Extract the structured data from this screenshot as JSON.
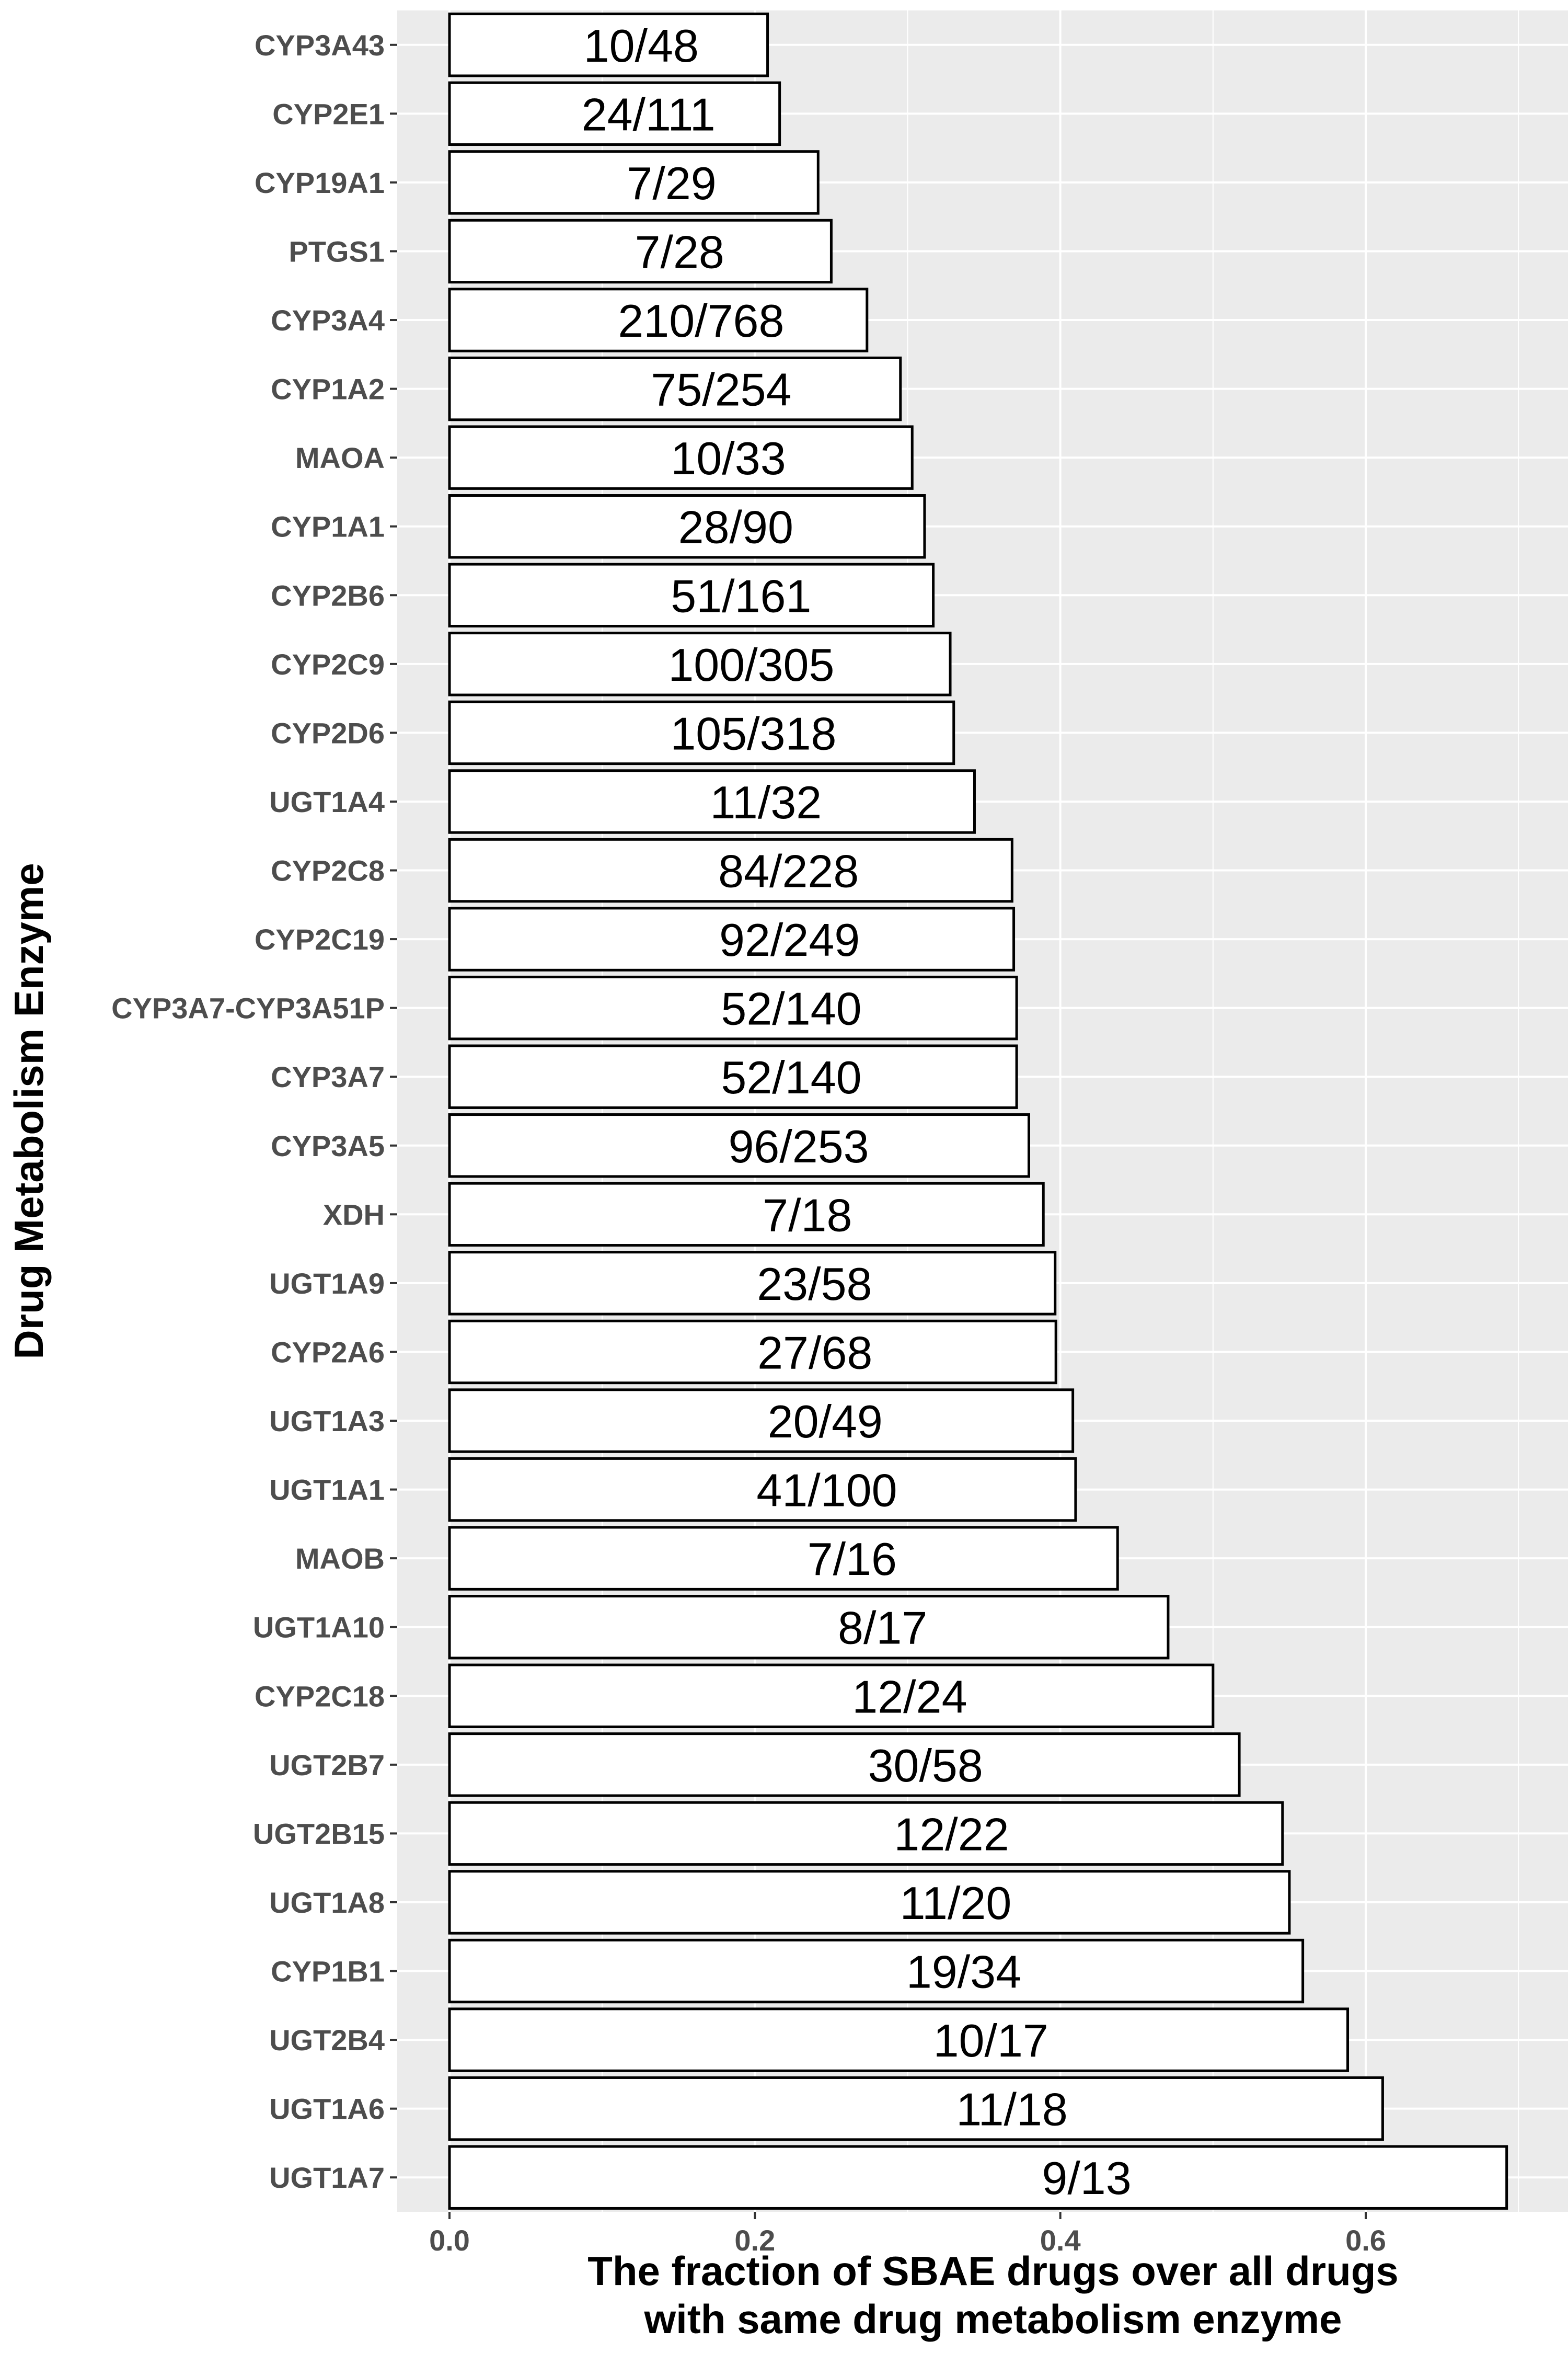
{
  "chart_data": {
    "type": "bar",
    "orientation": "horizontal",
    "xlabel": "The fraction of SBAE drugs over all drugs\nwith same drug metabolism enzyme",
    "ylabel": "Drug Metabolism Enzyme",
    "xlim": [
      -0.035,
      0.725
    ],
    "xticks": [
      "0.0",
      "0.2",
      "0.4",
      "0.6"
    ],
    "xtick_values": [
      0.0,
      0.2,
      0.4,
      0.6
    ],
    "grid": true,
    "bar_fill": "#ffffff",
    "bar_stroke": "#000000",
    "panel_background": "#ebebeb",
    "gridline_color": "#ffffff",
    "categories": [
      "CYP3A43",
      "CYP2E1",
      "CYP19A1",
      "PTGS1",
      "CYP3A4",
      "CYP1A2",
      "MAOA",
      "CYP1A1",
      "CYP2B6",
      "CYP2C9",
      "CYP2D6",
      "UGT1A4",
      "CYP2C8",
      "CYP2C19",
      "CYP3A7-CYP3A51P",
      "CYP3A7",
      "CYP3A5",
      "XDH",
      "UGT1A9",
      "CYP2A6",
      "UGT1A3",
      "UGT1A1",
      "MAOB",
      "UGT1A10",
      "CYP2C18",
      "UGT2B7",
      "UGT2B15",
      "UGT1A8",
      "CYP1B1",
      "UGT2B4",
      "UGT1A6",
      "UGT1A7"
    ],
    "values": [
      0.2083,
      0.2162,
      0.2414,
      0.25,
      0.2734,
      0.2953,
      0.303,
      0.3111,
      0.3168,
      0.3279,
      0.3302,
      0.3438,
      0.3684,
      0.3695,
      0.3714,
      0.3714,
      0.3794,
      0.3889,
      0.3966,
      0.3971,
      0.4082,
      0.41,
      0.4375,
      0.4706,
      0.5,
      0.5172,
      0.5455,
      0.55,
      0.5588,
      0.5882,
      0.6111,
      0.6923
    ],
    "labels": [
      "10/48",
      "24/111",
      "7/29",
      "7/28",
      "210/768",
      "75/254",
      "10/33",
      "28/90",
      "51/161",
      "100/305",
      "105/318",
      "11/32",
      "84/228",
      "92/249",
      "52/140",
      "52/140",
      "96/253",
      "7/18",
      "23/58",
      "27/68",
      "20/49",
      "41/100",
      "7/16",
      "8/17",
      "12/24",
      "30/58",
      "12/22",
      "11/20",
      "19/34",
      "10/17",
      "11/18",
      "9/13"
    ]
  }
}
